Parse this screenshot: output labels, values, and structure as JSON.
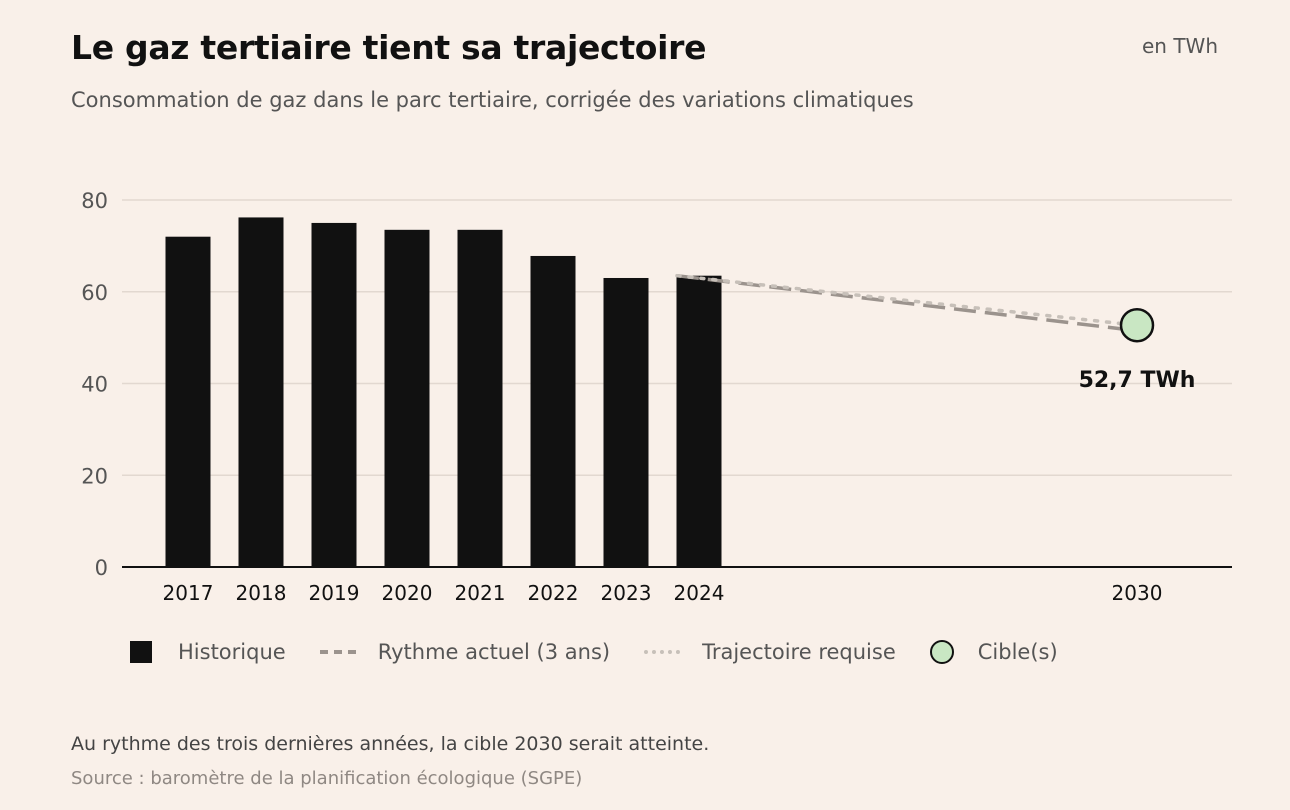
{
  "header": {
    "title": "Le gaz tertiaire tient sa trajectoire",
    "subtitle": "Consommation de gaz dans le parc tertiaire, corrigée des variations climatiques",
    "unit": "en TWh"
  },
  "legend": {
    "historique": "Historique",
    "rythme": "Rythme actuel (3 ans)",
    "trajectoire": "Trajectoire requise",
    "cible": "Cible(s)"
  },
  "footer": {
    "note": "Au rythme des trois dernières années, la cible 2030 serait atteinte.",
    "source": "Source : baromètre de la planification écologique (SGPE)"
  },
  "colors": {
    "background": "#f9f0e9",
    "bar": "#111111",
    "rythme": "#9b938d",
    "trajectoire": "#c7c0b9",
    "target_fill": "#c9e7c3",
    "grid": "#e2d8d0"
  },
  "chart_data": {
    "type": "bar",
    "categories": [
      "2017",
      "2018",
      "2019",
      "2020",
      "2021",
      "2022",
      "2023",
      "2024"
    ],
    "series": [
      {
        "name": "Historique",
        "values": [
          72,
          76.2,
          75,
          73.5,
          73.5,
          67.8,
          63,
          63.5
        ]
      }
    ],
    "projections": [
      {
        "name": "Rythme actuel (3 ans)",
        "style": "dashed",
        "from": [
          "2024",
          63.5
        ],
        "to": [
          "2030",
          51.5
        ]
      },
      {
        "name": "Trajectoire requise",
        "style": "dotted",
        "from": [
          "2024",
          63.5
        ],
        "to": [
          "2030",
          52.7
        ]
      }
    ],
    "target": {
      "name": "Cible(s)",
      "year": "2030",
      "value": 52.7,
      "label": "52,7 TWh"
    },
    "x_ticks": [
      "2017",
      "2018",
      "2019",
      "2020",
      "2021",
      "2022",
      "2023",
      "2024",
      "2030"
    ],
    "yticks": [
      0,
      20,
      40,
      60,
      80
    ],
    "ylim": [
      0,
      80
    ],
    "grid": true,
    "legend_position": "bottom"
  }
}
